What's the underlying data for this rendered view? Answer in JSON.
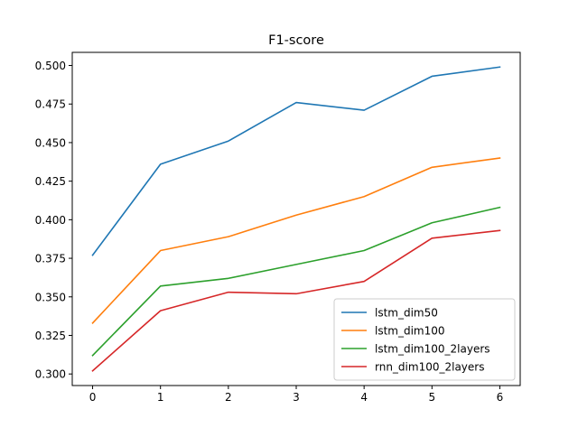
{
  "chart_data": {
    "type": "line",
    "title": "F1-score",
    "xlabel": "",
    "ylabel": "",
    "x": [
      0,
      1,
      2,
      3,
      4,
      5,
      6
    ],
    "xlim": [
      -0.3,
      6.3
    ],
    "ylim": [
      0.2925,
      0.5085
    ],
    "xticks": [
      0,
      1,
      2,
      3,
      4,
      5,
      6
    ],
    "yticks": [
      0.3,
      0.325,
      0.35,
      0.375,
      0.4,
      0.425,
      0.45,
      0.475,
      0.5
    ],
    "ytick_labels": [
      "0.300",
      "0.325",
      "0.350",
      "0.375",
      "0.400",
      "0.425",
      "0.450",
      "0.475",
      "0.500"
    ],
    "grid": false,
    "legend_position": "lower-right",
    "series": [
      {
        "name": "lstm_dim50",
        "color": "#1f77b4",
        "values": [
          0.377,
          0.436,
          0.451,
          0.476,
          0.471,
          0.493,
          0.499
        ]
      },
      {
        "name": "lstm_dim100",
        "color": "#ff7f0e",
        "values": [
          0.333,
          0.38,
          0.389,
          0.403,
          0.415,
          0.434,
          0.44
        ]
      },
      {
        "name": "lstm_dim100_2layers",
        "color": "#2ca02c",
        "values": [
          0.312,
          0.357,
          0.362,
          0.371,
          0.38,
          0.398,
          0.408
        ]
      },
      {
        "name": "rnn_dim100_2layers",
        "color": "#d62728",
        "values": [
          0.302,
          0.341,
          0.353,
          0.352,
          0.36,
          0.388,
          0.393
        ]
      }
    ]
  }
}
